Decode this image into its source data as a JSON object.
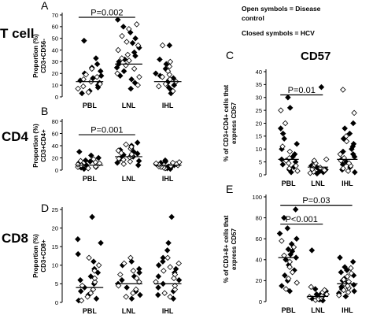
{
  "legend": {
    "lines": [
      "Open symbols = Disease",
      "control",
      "Closed symbols = HCV"
    ]
  },
  "row_labels": {
    "tcell": "T cell",
    "cd4": "CD4",
    "cd8": "CD8"
  },
  "cd57_title": "CD57",
  "chart_data": [
    {
      "id": "A",
      "letter": "A",
      "type": "scatter",
      "ylabel_lines": [
        "Proportion (%)",
        "CD3+CD56-"
      ],
      "categories": [
        "PBL",
        "LNL",
        "IHL"
      ],
      "yticks": [
        0,
        10,
        20,
        30,
        40,
        50,
        60,
        70
      ],
      "ylim": [
        0,
        70
      ],
      "medians": [
        13,
        28,
        13
      ],
      "significance": [
        {
          "label": "P=0.002",
          "from": 0,
          "to": 1,
          "y": 68
        }
      ],
      "groups": [
        {
          "category": "PBL",
          "closed": [
            3,
            5,
            8,
            10,
            12,
            14,
            16,
            18,
            20,
            22,
            25,
            28,
            33,
            48
          ],
          "open": [
            4,
            7,
            9,
            11,
            13,
            15,
            17,
            19,
            24
          ]
        },
        {
          "category": "LNL",
          "closed": [
            7,
            12,
            15,
            18,
            22,
            25,
            28,
            30,
            32,
            35,
            38,
            42,
            46,
            50,
            55,
            60,
            66
          ],
          "open": [
            10,
            17,
            20,
            24,
            27,
            31,
            33,
            36,
            40,
            44,
            47,
            52,
            58,
            62
          ]
        },
        {
          "category": "IHL",
          "closed": [
            3,
            6,
            8,
            10,
            12,
            14,
            16,
            18,
            20,
            24,
            28,
            32,
            44
          ],
          "open": [
            5,
            9,
            11,
            13,
            15,
            17,
            19,
            22,
            26,
            30,
            44
          ]
        }
      ]
    },
    {
      "id": "B",
      "letter": "B",
      "type": "scatter",
      "ylabel_lines": [
        "Proportion (%)",
        "CD3+CD4+"
      ],
      "categories": [
        "PBL",
        "LNL",
        "IHL"
      ],
      "yticks": [
        0,
        20,
        40,
        60,
        80
      ],
      "ylim": [
        0,
        80
      ],
      "medians": [
        8,
        22,
        8
      ],
      "significance": [
        {
          "label": "P=0.001",
          "from": 0,
          "to": 1,
          "y": 58
        }
      ],
      "groups": [
        {
          "category": "PBL",
          "closed": [
            2,
            4,
            5,
            6,
            7,
            8,
            9,
            10,
            12,
            14,
            16,
            20,
            24,
            30
          ],
          "open": [
            3,
            5,
            6,
            8,
            9,
            11,
            13,
            15,
            18
          ]
        },
        {
          "category": "LNL",
          "closed": [
            8,
            12,
            15,
            18,
            20,
            22,
            25,
            27,
            30,
            33,
            36,
            40,
            45
          ],
          "open": [
            10,
            14,
            17,
            19,
            21,
            23,
            26,
            28,
            32,
            35,
            38,
            42
          ]
        },
        {
          "category": "IHL",
          "closed": [
            2,
            3,
            4,
            5,
            6,
            7,
            8,
            9,
            10,
            11,
            12,
            14,
            16
          ],
          "open": [
            3,
            4,
            5,
            6,
            7,
            8,
            9,
            10,
            11,
            12,
            13
          ]
        }
      ]
    },
    {
      "id": "D",
      "letter": "D",
      "type": "scatter",
      "ylabel_lines": [
        "Proportion (%)",
        "CD3+CD8+"
      ],
      "categories": [
        "PBL",
        "LNL",
        "IHL"
      ],
      "yticks": [
        0,
        5,
        10,
        15,
        20,
        25
      ],
      "ylim": [
        0,
        25
      ],
      "medians": [
        4,
        5,
        5
      ],
      "significance": [],
      "groups": [
        {
          "category": "PBL",
          "closed": [
            0.5,
            1,
            2,
            3,
            4,
            5,
            6,
            7,
            8,
            9,
            11,
            13,
            16,
            17,
            23
          ],
          "open": [
            0.5,
            1.5,
            2.5,
            3.5,
            4.5,
            5.5,
            6.5,
            8.5,
            10,
            12
          ]
        },
        {
          "category": "LNL",
          "closed": [
            1,
            2,
            3,
            4,
            5,
            6,
            7,
            8,
            9,
            10,
            11
          ],
          "open": [
            1.5,
            2.5,
            3.5,
            4.5,
            5.5,
            6.5,
            7.5,
            8.5,
            10.5,
            12
          ]
        },
        {
          "category": "IHL",
          "closed": [
            1,
            2,
            3,
            4,
            5,
            6,
            7,
            8,
            9,
            10,
            11,
            12,
            14,
            16,
            23
          ],
          "open": [
            1.5,
            2.5,
            3.5,
            4.5,
            5.5,
            6.5,
            7.5,
            8.5,
            9.5,
            10.5,
            12
          ]
        }
      ]
    },
    {
      "id": "C",
      "letter": "C",
      "type": "scatter",
      "ylabel_lines": [
        "% of CD3+CD4+ cells that",
        "express CD57"
      ],
      "categories": [
        "PBL",
        "LNL",
        "IHL"
      ],
      "yticks": [
        0,
        5,
        10,
        15,
        20,
        25,
        30,
        35,
        40
      ],
      "ylim": [
        0,
        40
      ],
      "medians": [
        6,
        3,
        6
      ],
      "significance": [
        {
          "label": "P=0.01",
          "from": 0,
          "to": 1,
          "y": 31
        }
      ],
      "groups": [
        {
          "category": "PBL",
          "closed": [
            1,
            2,
            3,
            4,
            5,
            6,
            7,
            8,
            10,
            12,
            14,
            16,
            18,
            26,
            30
          ],
          "open": [
            1.5,
            2.5,
            3.5,
            4.5,
            5.5,
            6.5,
            9,
            11,
            20,
            25
          ]
        },
        {
          "category": "LNL",
          "closed": [
            0.5,
            1,
            1.5,
            2,
            2.5,
            3,
            3.5,
            4,
            5,
            34
          ],
          "open": [
            0.7,
            1.2,
            1.8,
            2.2,
            2.8,
            3.2,
            3.8,
            4.5,
            5.5,
            6
          ]
        },
        {
          "category": "IHL",
          "closed": [
            1,
            2,
            3,
            4,
            5,
            6,
            7,
            8,
            9,
            10,
            11,
            12,
            14,
            16,
            18,
            20
          ],
          "open": [
            1.5,
            2.5,
            3.5,
            4.5,
            5.5,
            6.5,
            8,
            13,
            15,
            24,
            33
          ]
        }
      ]
    },
    {
      "id": "E",
      "letter": "E",
      "type": "scatter",
      "ylabel_lines": [
        "% of CD3+8+ cells that",
        "express CD57"
      ],
      "categories": [
        "PBL",
        "LNL",
        "IHL"
      ],
      "yticks": [
        0,
        20,
        40,
        60,
        80,
        100
      ],
      "ylim": [
        0,
        100
      ],
      "medians": [
        42,
        5,
        17
      ],
      "significance": [
        {
          "label": "P<0.001",
          "from": 0,
          "to": 1,
          "y": 74
        },
        {
          "label": "P=0.03",
          "from": 0,
          "to": 2,
          "y": 92
        }
      ],
      "groups": [
        {
          "category": "PBL",
          "closed": [
            10,
            15,
            20,
            25,
            30,
            35,
            40,
            42,
            45,
            48,
            50,
            55,
            60,
            65,
            70,
            80,
            88
          ],
          "open": [
            12,
            18,
            22,
            28,
            33,
            38,
            44,
            52,
            58
          ]
        },
        {
          "category": "LNL",
          "closed": [
            1,
            2,
            3,
            4,
            5,
            6,
            7,
            8,
            10,
            12,
            49
          ],
          "open": [
            1.5,
            2.5,
            3.5,
            4.5,
            5.5,
            7,
            9,
            11,
            14
          ]
        },
        {
          "category": "IHL",
          "closed": [
            5,
            8,
            10,
            12,
            14,
            16,
            18,
            20,
            22,
            25,
            28,
            30,
            33,
            38,
            42
          ],
          "open": [
            6,
            9,
            11,
            13,
            15,
            17,
            19,
            21,
            24,
            27,
            32
          ]
        }
      ]
    }
  ]
}
